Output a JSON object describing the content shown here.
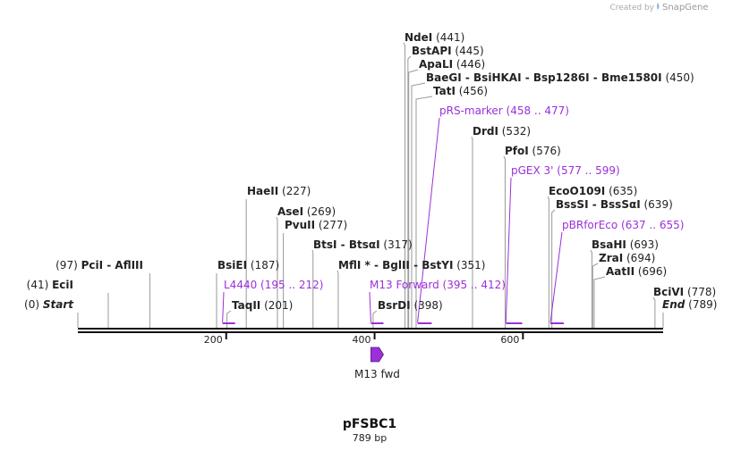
{
  "credit": {
    "text": "Created by",
    "brand": "SnapGene"
  },
  "title": "pFSBC1",
  "length_label": "789 bp",
  "sequence_length": 789,
  "ticks": [
    200,
    400,
    600
  ],
  "enzymes": [
    {
      "id": "start",
      "pos": 0,
      "names": [
        "Start"
      ],
      "pos_label": "(0)",
      "style": "italic"
    },
    {
      "id": "ecii",
      "pos": 41,
      "names": [
        "EciI"
      ],
      "pos_label": "(41)"
    },
    {
      "id": "pcii",
      "pos": 97,
      "names": [
        "PciI",
        "AflIII"
      ],
      "pos_label": "(97)"
    },
    {
      "id": "bsiei",
      "pos": 187,
      "names": [
        "BsiEI"
      ],
      "pos_label": "(187)"
    },
    {
      "id": "taqii",
      "pos": 201,
      "names": [
        "TaqII"
      ],
      "pos_label": "(201)"
    },
    {
      "id": "haeii",
      "pos": 227,
      "names": [
        "HaeII"
      ],
      "pos_label": "(227)"
    },
    {
      "id": "asei",
      "pos": 269,
      "names": [
        "AseI"
      ],
      "pos_label": "(269)"
    },
    {
      "id": "pvuii",
      "pos": 277,
      "names": [
        "PvuII"
      ],
      "pos_label": "(277)"
    },
    {
      "id": "btsi",
      "pos": 317,
      "names": [
        "BtsI",
        "BtsαI"
      ],
      "pos_label": "(317)"
    },
    {
      "id": "mfli",
      "pos": 351,
      "names": [
        "MflI *",
        "BglII",
        "BstYI"
      ],
      "pos_label": "(351)"
    },
    {
      "id": "bsrdi",
      "pos": 398,
      "names": [
        "BsrDI"
      ],
      "pos_label": "(398)"
    },
    {
      "id": "ndei",
      "pos": 441,
      "names": [
        "NdeI"
      ],
      "pos_label": "(441)"
    },
    {
      "id": "bstapi",
      "pos": 445,
      "names": [
        "BstAPI"
      ],
      "pos_label": "(445)"
    },
    {
      "id": "apali",
      "pos": 446,
      "names": [
        "ApaLI"
      ],
      "pos_label": "(446)"
    },
    {
      "id": "baegi",
      "pos": 450,
      "names": [
        "BaeGI",
        "BsiHKAI",
        "Bsp1286I",
        "Bme1580I"
      ],
      "pos_label": "(450)"
    },
    {
      "id": "tati",
      "pos": 456,
      "names": [
        "TatI"
      ],
      "pos_label": "(456)"
    },
    {
      "id": "drdi",
      "pos": 532,
      "names": [
        "DrdI"
      ],
      "pos_label": "(532)"
    },
    {
      "id": "pfoi",
      "pos": 576,
      "names": [
        "PfoI"
      ],
      "pos_label": "(576)"
    },
    {
      "id": "ecoo109i",
      "pos": 635,
      "names": [
        "EcoO109I"
      ],
      "pos_label": "(635)"
    },
    {
      "id": "bsssi",
      "pos": 639,
      "names": [
        "BssSI",
        "BssSαI"
      ],
      "pos_label": "(639)"
    },
    {
      "id": "bsahi",
      "pos": 693,
      "names": [
        "BsaHI"
      ],
      "pos_label": "(693)"
    },
    {
      "id": "zrai",
      "pos": 694,
      "names": [
        "ZraI"
      ],
      "pos_label": "(694)"
    },
    {
      "id": "aatii",
      "pos": 696,
      "names": [
        "AatII"
      ],
      "pos_label": "(696)"
    },
    {
      "id": "bcivi",
      "pos": 778,
      "names": [
        "BciVI"
      ],
      "pos_label": "(778)"
    },
    {
      "id": "end",
      "pos": 789,
      "names": [
        "End"
      ],
      "pos_label": "(789)",
      "style": "italic"
    }
  ],
  "primers": [
    {
      "id": "l4440",
      "name": "L4440",
      "range_label": "(195 .. 212)",
      "start": 195,
      "end": 212
    },
    {
      "id": "m13-forward",
      "name": "M13 Forward",
      "range_label": "(395 .. 412)",
      "start": 395,
      "end": 412
    },
    {
      "id": "prs-marker",
      "name": "pRS-marker",
      "range_label": "(458 .. 477)",
      "start": 458,
      "end": 477
    },
    {
      "id": "pgex-3",
      "name": "pGEX 3'",
      "range_label": "(577 .. 599)",
      "start": 577,
      "end": 599
    },
    {
      "id": "pbrforeco",
      "name": "pBRforEco",
      "range_label": "(637 .. 655)",
      "start": 637,
      "end": 655
    }
  ],
  "features": [
    {
      "id": "m13-fwd",
      "name": "M13 fwd",
      "start": 395,
      "end": 412,
      "color": "#9b30d9"
    }
  ],
  "colors": {
    "primer": "#9b30d9",
    "backbone": "#111111",
    "tick": "#999999"
  }
}
